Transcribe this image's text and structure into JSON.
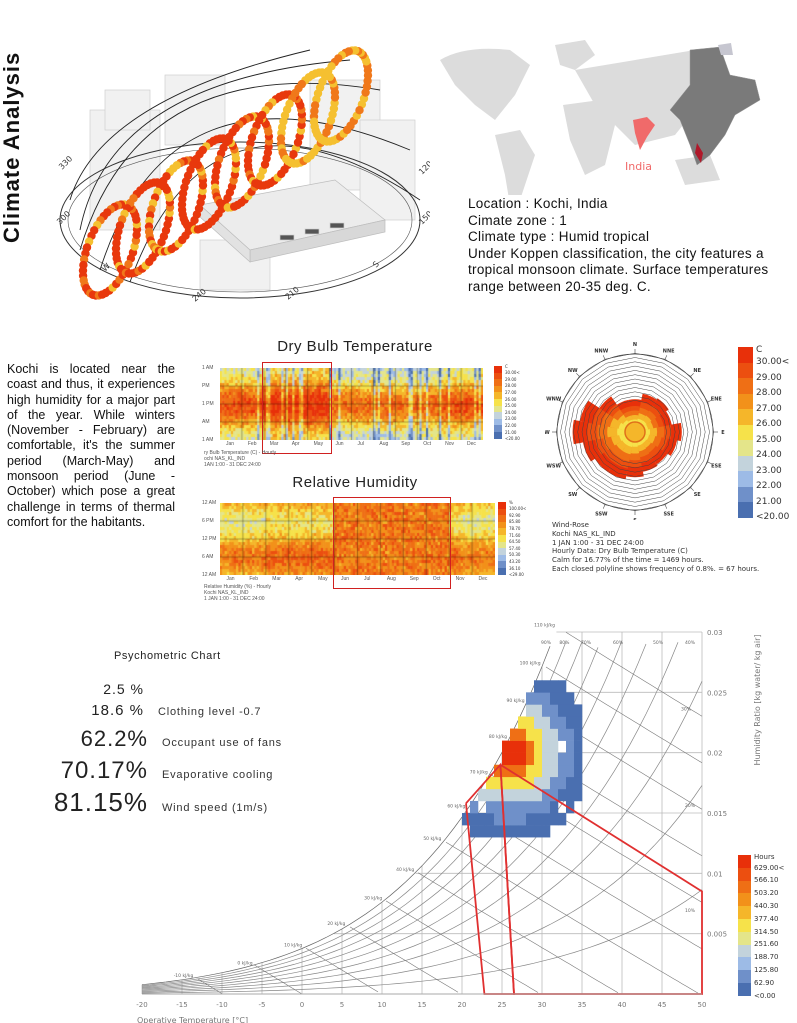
{
  "title": "Climate Analysis",
  "sunpath": {
    "compass_labels": [
      "330",
      "300",
      "W",
      "240",
      "210",
      "S",
      "150",
      "120"
    ],
    "colors": {
      "hot": "#e8380d",
      "warm": "#f0781a",
      "mild": "#f5c030"
    }
  },
  "map": {
    "highlight_label": "India",
    "highlight_color": "#f06a6a",
    "region_color": "#7a7a7a",
    "state_color": "#b0182a"
  },
  "location_info": {
    "lines": [
      "Location : Kochi, India",
      "Cimate zone : 1",
      "Climate type : Humid tropical",
      "Under Koppen classification, the city features a",
      "tropical monsoon climate. Surface temperatures",
      "range between 20-35 deg. C."
    ]
  },
  "description": "Kochi is located near the coast and thus, it experiences high humidity for a major part of the year. While winters (November - February) are comfortable, it's the summer period (March-May) and monsoon period (June - October) which pose a great challenge in terms of thermal comfort for the habitants.",
  "dry_bulb": {
    "title": "Dry Bulb Temperature",
    "y_labels": [
      "1 AM",
      "PM",
      "1 PM",
      "AM",
      "1 AM"
    ],
    "months": [
      "Jan",
      "Feb",
      "Mar",
      "Apr",
      "May",
      "Jun",
      "Jul",
      "Aug",
      "Sep",
      "Oct",
      "Nov",
      "Dec"
    ],
    "caption": [
      "ry Bulb Temperature (C) - Hourly",
      "ochi NAS_KL_IND",
      "1AN 1:00 - 31 DEC 24:00"
    ],
    "highlight_months": [
      "Mar",
      "May"
    ],
    "legend_unit": "C",
    "legend": [
      "30.00<",
      "29.00",
      "28.00",
      "27.00",
      "26.00",
      "25.00",
      "24.00",
      "23.00",
      "22.00",
      "21.00",
      "<20.00"
    ]
  },
  "humidity": {
    "title": "Relative Humidity",
    "y_labels": [
      "12 AM",
      "6 PM",
      "12 PM",
      "6 AM",
      "12 AM"
    ],
    "months": [
      "Jan",
      "Feb",
      "Mar",
      "Apr",
      "May",
      "Jun",
      "Jul",
      "Aug",
      "Sep",
      "Oct",
      "Nov",
      "Dec"
    ],
    "caption": [
      "Relative Humidity (%) - Hourly",
      "Kochi NAS_KL_IND",
      "1 JAN 1:00 - 31 DEC 24:00"
    ],
    "highlight_months": [
      "Jun",
      "Oct"
    ],
    "legend_unit": "%",
    "legend": [
      "100.00<",
      "92.90",
      "85.80",
      "78.70",
      "71.60",
      "64.50",
      "57.40",
      "50.30",
      "43.20",
      "36.10",
      "<29.00"
    ]
  },
  "color_scale": [
    "#e8300a",
    "#ec4f10",
    "#ef6f15",
    "#f2911a",
    "#f5b62a",
    "#f6e24a",
    "#e4e58a",
    "#c3d3dc",
    "#9dbbe6",
    "#6f90c9",
    "#4a6fb0"
  ],
  "wind_rose": {
    "directions": [
      "N",
      "NNE",
      "NE",
      "ENE",
      "E",
      "ESE",
      "SE",
      "SSE",
      "S",
      "SSW",
      "SW",
      "WSW",
      "W",
      "WNW",
      "NW",
      "NNW"
    ],
    "legend_unit": "C",
    "legend": [
      "30.00<",
      "29.00",
      "28.00",
      "27.00",
      "26.00",
      "25.00",
      "24.00",
      "23.00",
      "22.00",
      "21.00",
      "<20.00"
    ],
    "relative_extent": [
      0.42,
      0.5,
      0.52,
      0.48,
      0.6,
      0.55,
      0.5,
      0.52,
      0.58,
      0.62,
      0.62,
      0.68,
      0.8,
      0.72,
      0.55,
      0.42
    ],
    "caption": [
      "Wind-Rose",
      "Kochi NAS_KL_IND",
      "1 JAN 1:00 - 31 DEC 24:00",
      "Hourly Data: Dry Bulb Temperature (C)",
      "Calm for 16.77% of the time = 1469 hours.",
      "Each closed polyline shows frequency of 0.8%. = 67 hours."
    ]
  },
  "psychrometric": {
    "title": "Psychometric Chart",
    "stats": [
      {
        "value": "2.5 %",
        "label": ""
      },
      {
        "value": "18.6 %",
        "label": "Clothing level -0.7"
      },
      {
        "value": "62.2%",
        "label": "Occupant use of fans"
      },
      {
        "value": "70.17%",
        "label": "Evaporative cooling"
      },
      {
        "value": "81.15%",
        "label": "Wind speed (1m/s)"
      }
    ],
    "x_label": "Operative Temperature [°C]",
    "y_label": "Humidity Ratio [kg water/ kg air]",
    "x_ticks": [
      "-20",
      "-15",
      "-10",
      "-5",
      "0",
      "5",
      "10",
      "15",
      "20",
      "25",
      "30",
      "35",
      "40",
      "45",
      "50"
    ],
    "y_ticks": [
      "0.005",
      "0.01",
      "0.015",
      "0.02",
      "0.025",
      "0.03"
    ],
    "enthalpy_labels": [
      "-10 kJ/kg",
      "0 kJ/kg",
      "10 kJ/kg",
      "20 kJ/kg",
      "30 kJ/kg",
      "40 kJ/kg",
      "50 kJ/kg",
      "60 kJ/kg",
      "70 kJ/kg",
      "80 kJ/kg",
      "90 kJ/kg",
      "100 kJ/kg",
      "110 kJ/kg"
    ],
    "rh_labels": [
      "90%",
      "80%",
      "70%",
      "60%",
      "50%",
      "40%",
      "30%",
      "20%",
      "10%"
    ],
    "legend_unit": "Hours",
    "legend": [
      "629.00<",
      "566.10",
      "503.20",
      "440.30",
      "377.40",
      "314.50",
      "251.60",
      "188.70",
      "125.80",
      "62.90",
      "<0.00"
    ],
    "comfort_polygon_color": "#e03030"
  }
}
